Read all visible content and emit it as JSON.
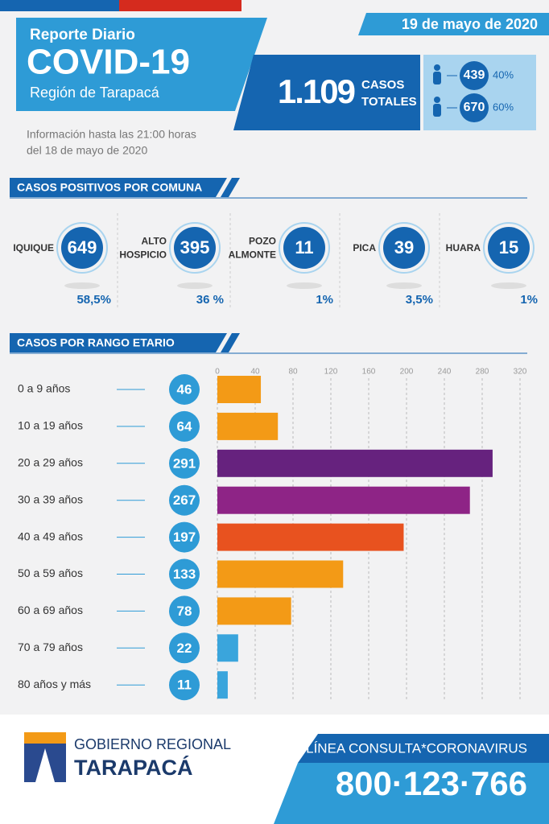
{
  "header": {
    "kicker": "Reporte Diario",
    "title": "COVID-19",
    "region": "Región de Tarapacá",
    "date": "19 de mayo de 2020",
    "info": [
      "Información hasta las 21:00 horas",
      "del 18 de mayo de 2020"
    ]
  },
  "totals": {
    "value": "1.109",
    "label": [
      "CASOS",
      "TOTALES"
    ],
    "groups": [
      {
        "value": 439,
        "percent": "40%"
      },
      {
        "value": 670,
        "percent": "60%"
      }
    ]
  },
  "comunas": {
    "title": "CASOS POSITIVOS POR COMUNA",
    "items": [
      {
        "name": [
          "IQUIQUE"
        ],
        "value": 649,
        "percent": "58,5%"
      },
      {
        "name": [
          "ALTO",
          "HOSPICIO"
        ],
        "value": 395,
        "percent": "36 %"
      },
      {
        "name": [
          "POZO",
          "ALMONTE"
        ],
        "value": 11,
        "percent": "1%"
      },
      {
        "name": [
          "PICA"
        ],
        "value": 39,
        "percent": "3,5%"
      },
      {
        "name": [
          "HUARA"
        ],
        "value": 15,
        "percent": "1%"
      }
    ]
  },
  "chart_data": {
    "type": "bar",
    "orientation": "horizontal",
    "title": "CASOS POR RANGO ETARIO",
    "categories": [
      "0 a 9 años",
      "10 a 19 años",
      "20 a 29 años",
      "30 a 39 años",
      "40 a 49 años",
      "50 a 59 años",
      "60 a 69 años",
      "70 a 79 años",
      "80 años y más"
    ],
    "values": [
      46,
      64,
      291,
      267,
      197,
      133,
      78,
      22,
      11
    ],
    "colors": [
      "#f39a16",
      "#f39a16",
      "#66227e",
      "#8e2486",
      "#e8521f",
      "#f39a16",
      "#f39a16",
      "#3aa5dc",
      "#3aa5dc"
    ],
    "xlim": [
      0,
      320
    ],
    "xticks": [
      0,
      40,
      80,
      120,
      160,
      200,
      240,
      280,
      320
    ],
    "grid": true
  },
  "footer": {
    "org": [
      "GOBIERNO REGIONAL",
      "TARAPACÁ"
    ],
    "hotline_label": "LÍNEA CONSULTA*CORONAVIRUS",
    "hotline": "800·123·766"
  }
}
